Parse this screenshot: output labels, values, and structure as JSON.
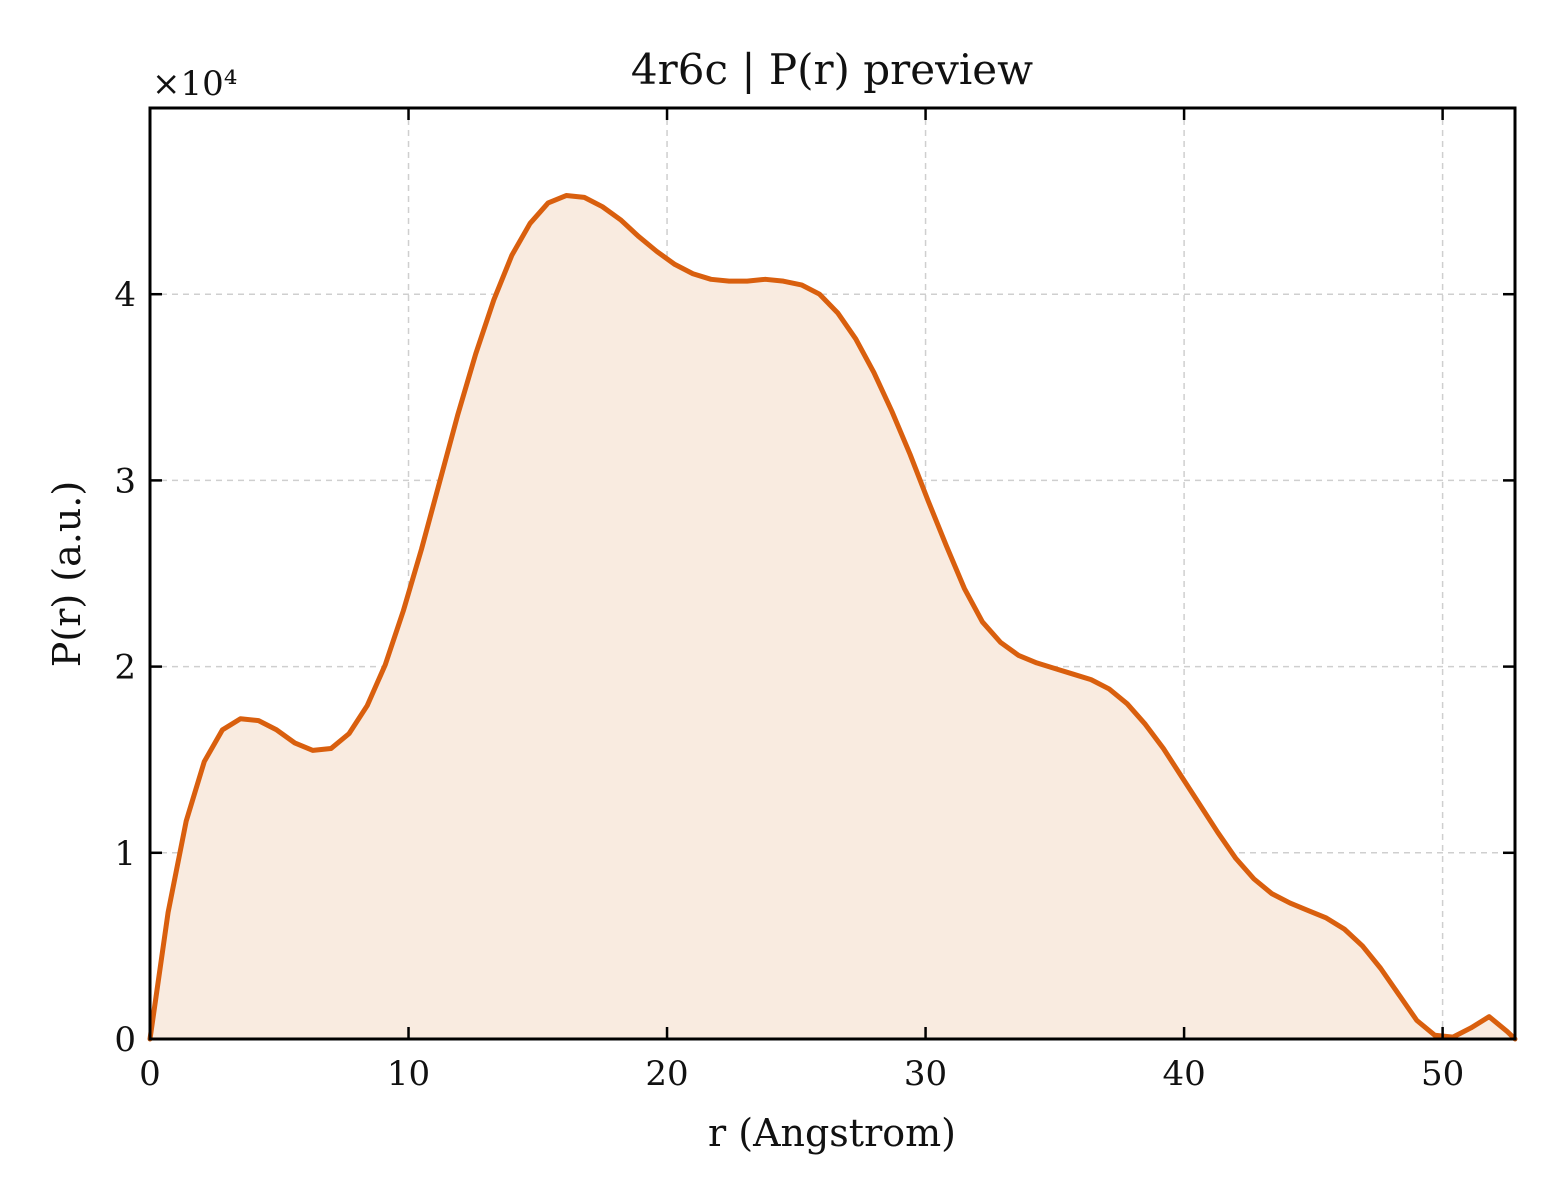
{
  "chart_data": {
    "type": "area",
    "title": "4r6c | P(r) preview",
    "xlabel": "r (Angstrom)",
    "ylabel": "P(r) (a.u.)",
    "y_multiplier": "×10⁴",
    "xlim": [
      0,
      52.8
    ],
    "ylim": [
      0,
      50000
    ],
    "xticks": [
      0,
      10,
      20,
      30,
      40,
      50
    ],
    "yticks": [
      0,
      10000,
      20000,
      30000,
      40000
    ],
    "ytick_labels": [
      "0",
      "1",
      "2",
      "3",
      "4"
    ],
    "grid": true,
    "line_color": "#d95f0e",
    "fill_color": "#f9ebe0",
    "x": [
      0,
      0.7,
      1.4,
      2.1,
      2.8,
      3.5,
      4.2,
      4.9,
      5.6,
      6.3,
      7.0,
      7.7,
      8.4,
      9.1,
      9.8,
      10.5,
      11.2,
      11.9,
      12.6,
      13.3,
      14.0,
      14.7,
      15.4,
      16.1,
      16.8,
      17.5,
      18.2,
      18.9,
      19.6,
      20.3,
      21.0,
      21.7,
      22.4,
      23.1,
      23.8,
      24.5,
      25.2,
      25.9,
      26.6,
      27.3,
      28.0,
      28.7,
      29.4,
      30.1,
      30.8,
      31.5,
      32.2,
      32.9,
      33.6,
      34.3,
      35.0,
      35.7,
      36.4,
      37.1,
      37.8,
      38.5,
      39.2,
      39.9,
      40.6,
      41.3,
      42.0,
      42.7,
      43.4,
      44.1,
      44.8,
      45.5,
      46.2,
      46.9,
      47.6,
      48.3,
      49.0,
      49.7,
      50.4,
      51.1,
      51.8,
      52.5,
      52.8
    ],
    "y": [
      0,
      6800,
      11700,
      14900,
      16600,
      17200,
      17100,
      16600,
      15900,
      15500,
      15600,
      16400,
      17900,
      20100,
      23000,
      26300,
      29900,
      33500,
      36800,
      39700,
      42100,
      43800,
      44900,
      45300,
      45200,
      44700,
      44000,
      43100,
      42300,
      41600,
      41100,
      40800,
      40700,
      40700,
      40800,
      40700,
      40500,
      40000,
      39000,
      37600,
      35800,
      33700,
      31400,
      28900,
      26500,
      24200,
      22400,
      21300,
      20600,
      20200,
      19900,
      19600,
      19300,
      18800,
      18000,
      16900,
      15600,
      14100,
      12600,
      11100,
      9700,
      8600,
      7800,
      7300,
      6900,
      6500,
      5900,
      5000,
      3800,
      2400,
      1000,
      200,
      100,
      600,
      1200,
      400,
      0
    ]
  }
}
